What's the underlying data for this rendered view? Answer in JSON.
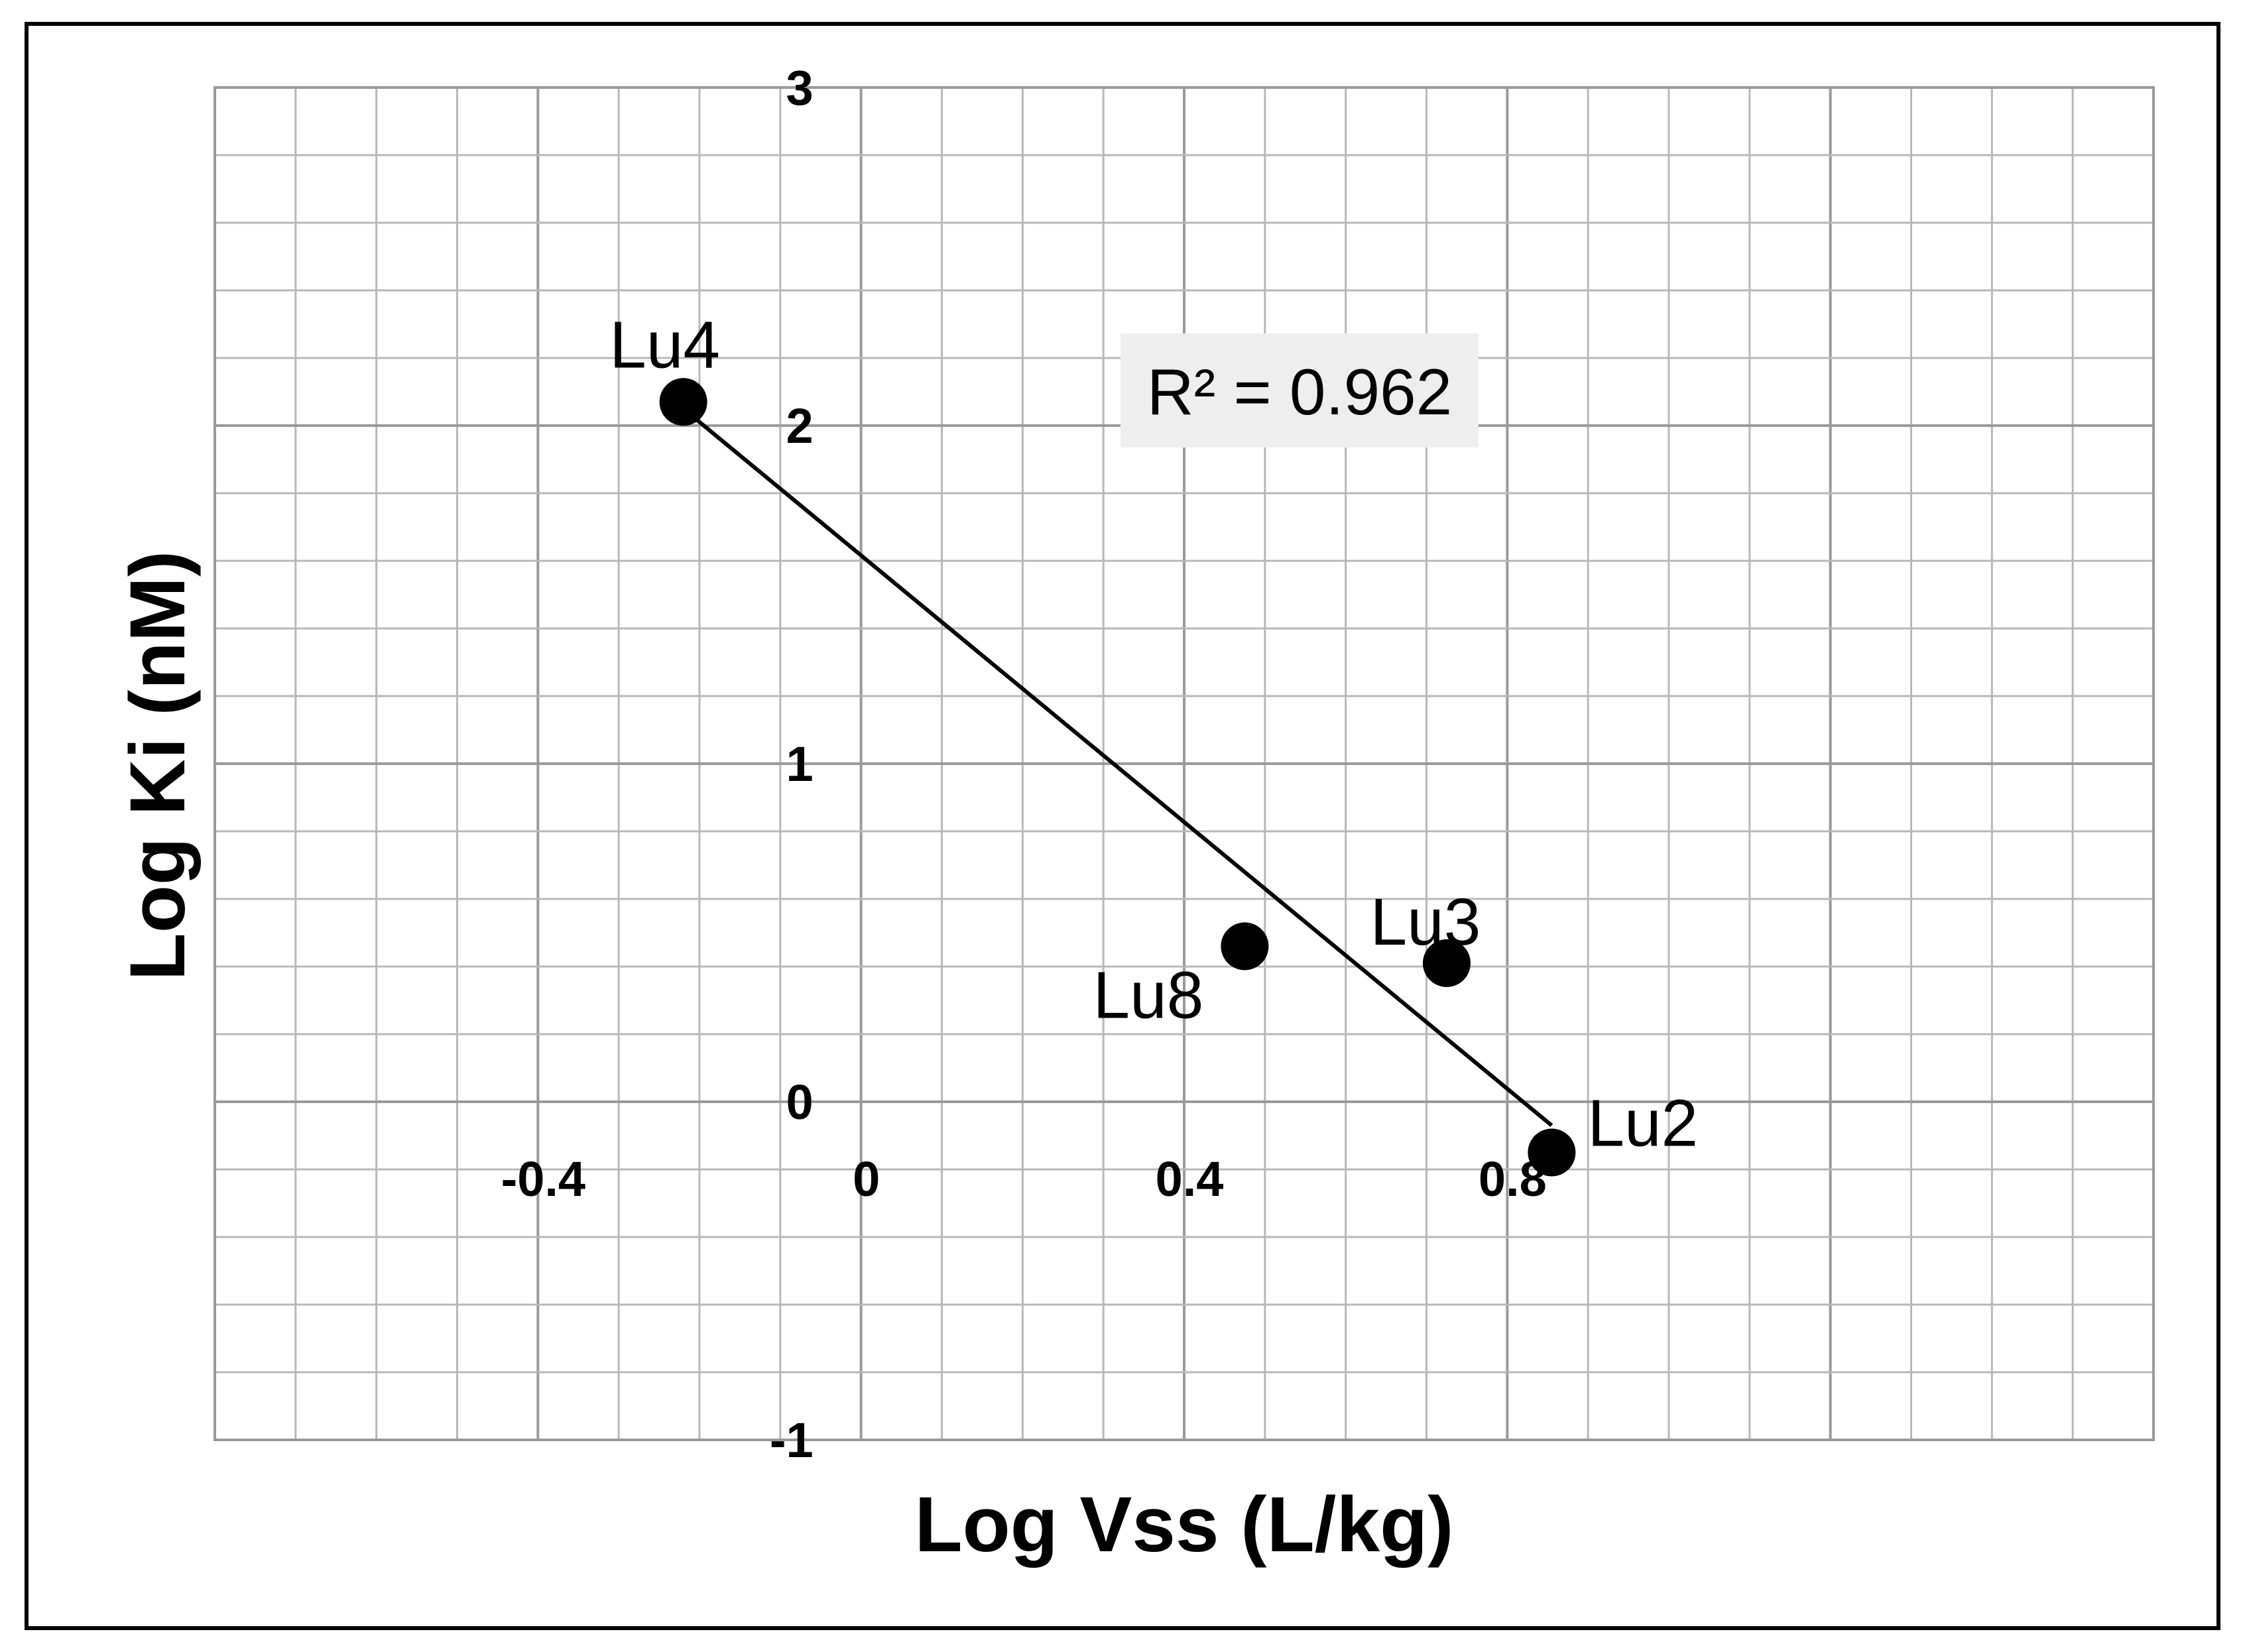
{
  "chart_data": {
    "type": "scatter",
    "xlabel": "Log Vss (L/kg)",
    "ylabel": "Log Ki (nM)",
    "xlim": [
      -0.8,
      1.6
    ],
    "ylim": [
      -1,
      3
    ],
    "x_ticks": [
      -0.4,
      0,
      0.4,
      0.8
    ],
    "x_tick_labels": [
      "-0.4",
      "0",
      "0.4",
      "0.8"
    ],
    "y_ticks": [
      3,
      2,
      1,
      0,
      -1
    ],
    "y_tick_labels": [
      "3",
      "2",
      "1",
      "0",
      "-1"
    ],
    "grid": true,
    "points": [
      {
        "label": "Lu4",
        "x": -0.22,
        "y": 2.07
      },
      {
        "label": "Lu8",
        "x": 0.475,
        "y": 0.46
      },
      {
        "label": "Lu3",
        "x": 0.725,
        "y": 0.41
      },
      {
        "label": "Lu2",
        "x": 0.855,
        "y": -0.15
      }
    ],
    "trendline": {
      "x": [
        -0.22,
        0.855
      ],
      "y": [
        2.05,
        -0.07
      ]
    },
    "annotation": {
      "r2_text": "R² = 0.962"
    }
  }
}
